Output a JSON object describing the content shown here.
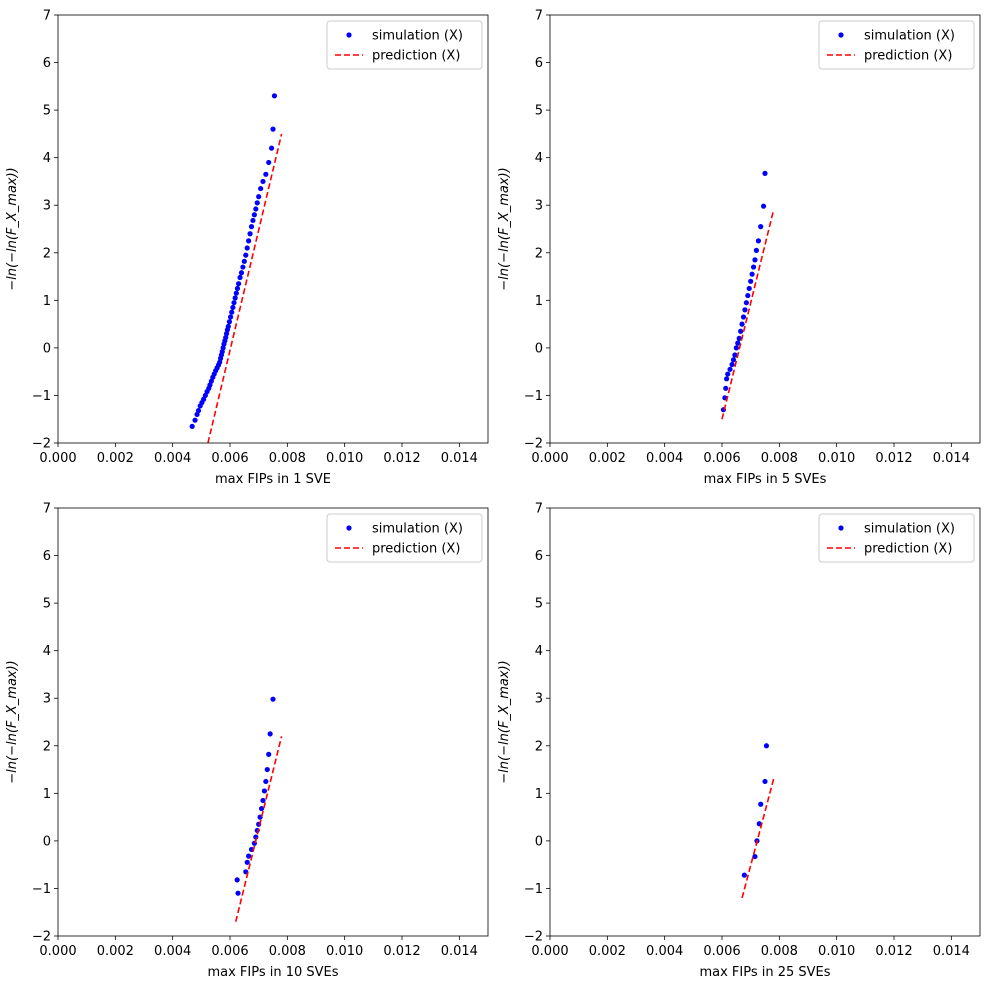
{
  "chart_data": [
    {
      "type": "scatter",
      "xlabel": "max FIPs in 1 SVE",
      "ylabel": "−ln(−ln(F_X_max))",
      "xlim": [
        0,
        0.015
      ],
      "ylim": [
        -2,
        7
      ],
      "xticks": [
        "0.000",
        "0.002",
        "0.004",
        "0.006",
        "0.008",
        "0.010",
        "0.012",
        "0.014"
      ],
      "yticks": [
        "−2",
        "−1",
        "0",
        "1",
        "2",
        "3",
        "4",
        "5",
        "6",
        "7"
      ],
      "legend": {
        "placement": "top-right",
        "entries": [
          "simulation (X)",
          "prediction (X)"
        ]
      },
      "series": [
        {
          "name": "simulation (X)",
          "style": "dots",
          "color": "#0000ff",
          "points": [
            [
              0.00468,
              -1.65
            ],
            [
              0.00478,
              -1.52
            ],
            [
              0.00485,
              -1.4
            ],
            [
              0.0049,
              -1.32
            ],
            [
              0.00496,
              -1.22
            ],
            [
              0.00502,
              -1.15
            ],
            [
              0.00508,
              -1.08
            ],
            [
              0.00514,
              -1.0
            ],
            [
              0.0052,
              -0.92
            ],
            [
              0.00526,
              -0.85
            ],
            [
              0.0053,
              -0.78
            ],
            [
              0.00535,
              -0.7
            ],
            [
              0.0054,
              -0.62
            ],
            [
              0.00545,
              -0.55
            ],
            [
              0.0055,
              -0.48
            ],
            [
              0.00555,
              -0.42
            ],
            [
              0.0056,
              -0.36
            ],
            [
              0.00564,
              -0.3
            ],
            [
              0.00567,
              -0.22
            ],
            [
              0.0057,
              -0.15
            ],
            [
              0.00573,
              -0.08
            ],
            [
              0.00576,
              0.0
            ],
            [
              0.00579,
              0.08
            ],
            [
              0.00582,
              0.15
            ],
            [
              0.00585,
              0.22
            ],
            [
              0.00588,
              0.3
            ],
            [
              0.00591,
              0.38
            ],
            [
              0.00594,
              0.45
            ],
            [
              0.00598,
              0.55
            ],
            [
              0.00602,
              0.65
            ],
            [
              0.00606,
              0.75
            ],
            [
              0.0061,
              0.85
            ],
            [
              0.00614,
              0.95
            ],
            [
              0.00618,
              1.05
            ],
            [
              0.00622,
              1.15
            ],
            [
              0.00626,
              1.25
            ],
            [
              0.0063,
              1.35
            ],
            [
              0.00635,
              1.48
            ],
            [
              0.0064,
              1.58
            ],
            [
              0.00645,
              1.7
            ],
            [
              0.0065,
              1.82
            ],
            [
              0.00655,
              1.95
            ],
            [
              0.0066,
              2.1
            ],
            [
              0.00665,
              2.25
            ],
            [
              0.0067,
              2.4
            ],
            [
              0.00675,
              2.55
            ],
            [
              0.0068,
              2.68
            ],
            [
              0.00685,
              2.8
            ],
            [
              0.0069,
              2.92
            ],
            [
              0.00695,
              3.05
            ],
            [
              0.007,
              3.18
            ],
            [
              0.00707,
              3.35
            ],
            [
              0.00715,
              3.5
            ],
            [
              0.00725,
              3.65
            ],
            [
              0.00735,
              3.9
            ],
            [
              0.00745,
              4.2
            ],
            [
              0.0075,
              4.6
            ],
            [
              0.00755,
              5.3
            ]
          ]
        },
        {
          "name": "prediction (X)",
          "style": "dashed",
          "color": "#ff0000",
          "points": [
            [
              0.00523,
              -2.0
            ],
            [
              0.0078,
              4.5
            ]
          ]
        }
      ]
    },
    {
      "type": "scatter",
      "xlabel": "max FIPs in 5 SVEs",
      "ylabel": "−ln(−ln(F_X_max))",
      "xlim": [
        0,
        0.015
      ],
      "ylim": [
        -2,
        7
      ],
      "xticks": [
        "0.000",
        "0.002",
        "0.004",
        "0.006",
        "0.008",
        "0.010",
        "0.012",
        "0.014"
      ],
      "yticks": [
        "−2",
        "−1",
        "0",
        "1",
        "2",
        "3",
        "4",
        "5",
        "6",
        "7"
      ],
      "legend": {
        "placement": "top-right",
        "entries": [
          "simulation (X)",
          "prediction (X)"
        ]
      },
      "series": [
        {
          "name": "simulation (X)",
          "style": "dots",
          "color": "#0000ff",
          "points": [
            [
              0.00605,
              -1.3
            ],
            [
              0.0061,
              -1.05
            ],
            [
              0.00613,
              -0.85
            ],
            [
              0.00616,
              -0.65
            ],
            [
              0.0062,
              -0.55
            ],
            [
              0.00628,
              -0.45
            ],
            [
              0.00635,
              -0.35
            ],
            [
              0.0064,
              -0.25
            ],
            [
              0.00645,
              -0.15
            ],
            [
              0.0065,
              0.0
            ],
            [
              0.00655,
              0.1
            ],
            [
              0.0066,
              0.2
            ],
            [
              0.00665,
              0.35
            ],
            [
              0.0067,
              0.5
            ],
            [
              0.00675,
              0.65
            ],
            [
              0.0068,
              0.8
            ],
            [
              0.00685,
              0.95
            ],
            [
              0.0069,
              1.1
            ],
            [
              0.00695,
              1.25
            ],
            [
              0.007,
              1.4
            ],
            [
              0.00705,
              1.55
            ],
            [
              0.0071,
              1.7
            ],
            [
              0.00715,
              1.85
            ],
            [
              0.0072,
              2.05
            ],
            [
              0.00727,
              2.25
            ],
            [
              0.00735,
              2.55
            ],
            [
              0.00745,
              2.98
            ],
            [
              0.0075,
              3.67
            ]
          ]
        },
        {
          "name": "prediction (X)",
          "style": "dashed",
          "color": "#ff0000",
          "points": [
            [
              0.006,
              -1.5
            ],
            [
              0.0078,
              2.9
            ]
          ]
        }
      ]
    },
    {
      "type": "scatter",
      "xlabel": "max FIPs in 10 SVEs",
      "ylabel": "−ln(−ln(F_X_max))",
      "xlim": [
        0,
        0.015
      ],
      "ylim": [
        -2,
        7
      ],
      "xticks": [
        "0.000",
        "0.002",
        "0.004",
        "0.006",
        "0.008",
        "0.010",
        "0.012",
        "0.014"
      ],
      "yticks": [
        "−2",
        "−1",
        "0",
        "1",
        "2",
        "3",
        "4",
        "5",
        "6",
        "7"
      ],
      "legend": {
        "placement": "top-right",
        "entries": [
          "simulation (X)",
          "prediction (X)"
        ]
      },
      "series": [
        {
          "name": "simulation (X)",
          "style": "dots",
          "color": "#0000ff",
          "points": [
            [
              0.00625,
              -0.82
            ],
            [
              0.00628,
              -1.1
            ],
            [
              0.00655,
              -0.65
            ],
            [
              0.0066,
              -0.45
            ],
            [
              0.00665,
              -0.32
            ],
            [
              0.00675,
              -0.18
            ],
            [
              0.00685,
              -0.05
            ],
            [
              0.0069,
              0.08
            ],
            [
              0.00695,
              0.22
            ],
            [
              0.007,
              0.35
            ],
            [
              0.00705,
              0.5
            ],
            [
              0.0071,
              0.68
            ],
            [
              0.00715,
              0.85
            ],
            [
              0.0072,
              1.05
            ],
            [
              0.00725,
              1.25
            ],
            [
              0.0073,
              1.5
            ],
            [
              0.00735,
              1.82
            ],
            [
              0.0074,
              2.25
            ],
            [
              0.0075,
              2.98
            ]
          ]
        },
        {
          "name": "prediction (X)",
          "style": "dashed",
          "color": "#ff0000",
          "points": [
            [
              0.0062,
              -1.7
            ],
            [
              0.0078,
              2.2
            ]
          ]
        }
      ]
    },
    {
      "type": "scatter",
      "xlabel": "max FIPs in 25 SVEs",
      "ylabel": "−ln(−ln(F_X_max))",
      "xlim": [
        0,
        0.015
      ],
      "ylim": [
        -2,
        7
      ],
      "xticks": [
        "0.000",
        "0.002",
        "0.004",
        "0.006",
        "0.008",
        "0.010",
        "0.012",
        "0.014"
      ],
      "yticks": [
        "−2",
        "−1",
        "0",
        "1",
        "2",
        "3",
        "4",
        "5",
        "6",
        "7"
      ],
      "legend": {
        "placement": "top-right",
        "entries": [
          "simulation (X)",
          "prediction (X)"
        ]
      },
      "series": [
        {
          "name": "simulation (X)",
          "style": "dots",
          "color": "#0000ff",
          "points": [
            [
              0.00678,
              -0.72
            ],
            [
              0.00715,
              -0.33
            ],
            [
              0.00722,
              0.0
            ],
            [
              0.0073,
              0.36
            ],
            [
              0.00735,
              0.77
            ],
            [
              0.0075,
              1.25
            ],
            [
              0.00755,
              2.0
            ]
          ]
        },
        {
          "name": "prediction (X)",
          "style": "dashed",
          "color": "#ff0000",
          "points": [
            [
              0.0067,
              -1.2
            ],
            [
              0.0078,
              1.3
            ]
          ]
        }
      ]
    }
  ]
}
